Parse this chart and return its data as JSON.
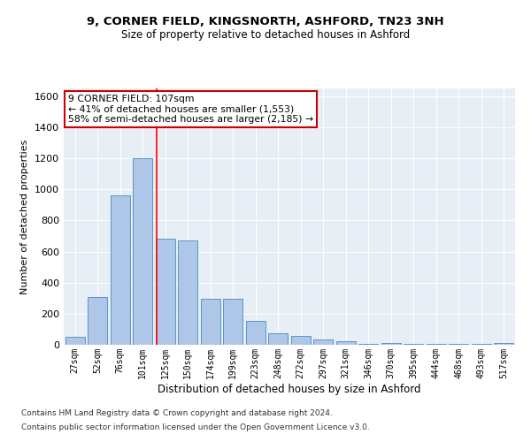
{
  "title_line1": "9, CORNER FIELD, KINGSNORTH, ASHFORD, TN23 3NH",
  "title_line2": "Size of property relative to detached houses in Ashford",
  "xlabel": "Distribution of detached houses by size in Ashford",
  "ylabel": "Number of detached properties",
  "bar_labels": [
    "27sqm",
    "52sqm",
    "76sqm",
    "101sqm",
    "125sqm",
    "150sqm",
    "174sqm",
    "199sqm",
    "223sqm",
    "248sqm",
    "272sqm",
    "297sqm",
    "321sqm",
    "346sqm",
    "370sqm",
    "395sqm",
    "444sqm",
    "468sqm",
    "493sqm",
    "517sqm"
  ],
  "bar_values": [
    50,
    310,
    960,
    1200,
    680,
    670,
    295,
    295,
    155,
    75,
    55,
    35,
    20,
    5,
    12,
    5,
    5,
    5,
    5,
    12
  ],
  "bar_color": "#aec6e8",
  "bar_edge_color": "#5a96c8",
  "bg_color": "#e8eef5",
  "grid_color": "#ffffff",
  "annotation_text": "9 CORNER FIELD: 107sqm\n← 41% of detached houses are smaller (1,553)\n58% of semi-detached houses are larger (2,185) →",
  "red_line_x": 3.62,
  "annotation_box_color": "#ffffff",
  "annotation_box_edge": "#cc0000",
  "ylim": [
    0,
    1650
  ],
  "yticks": [
    0,
    200,
    400,
    600,
    800,
    1000,
    1200,
    1400,
    1600
  ],
  "footer_line1": "Contains HM Land Registry data © Crown copyright and database right 2024.",
  "footer_line2": "Contains public sector information licensed under the Open Government Licence v3.0."
}
